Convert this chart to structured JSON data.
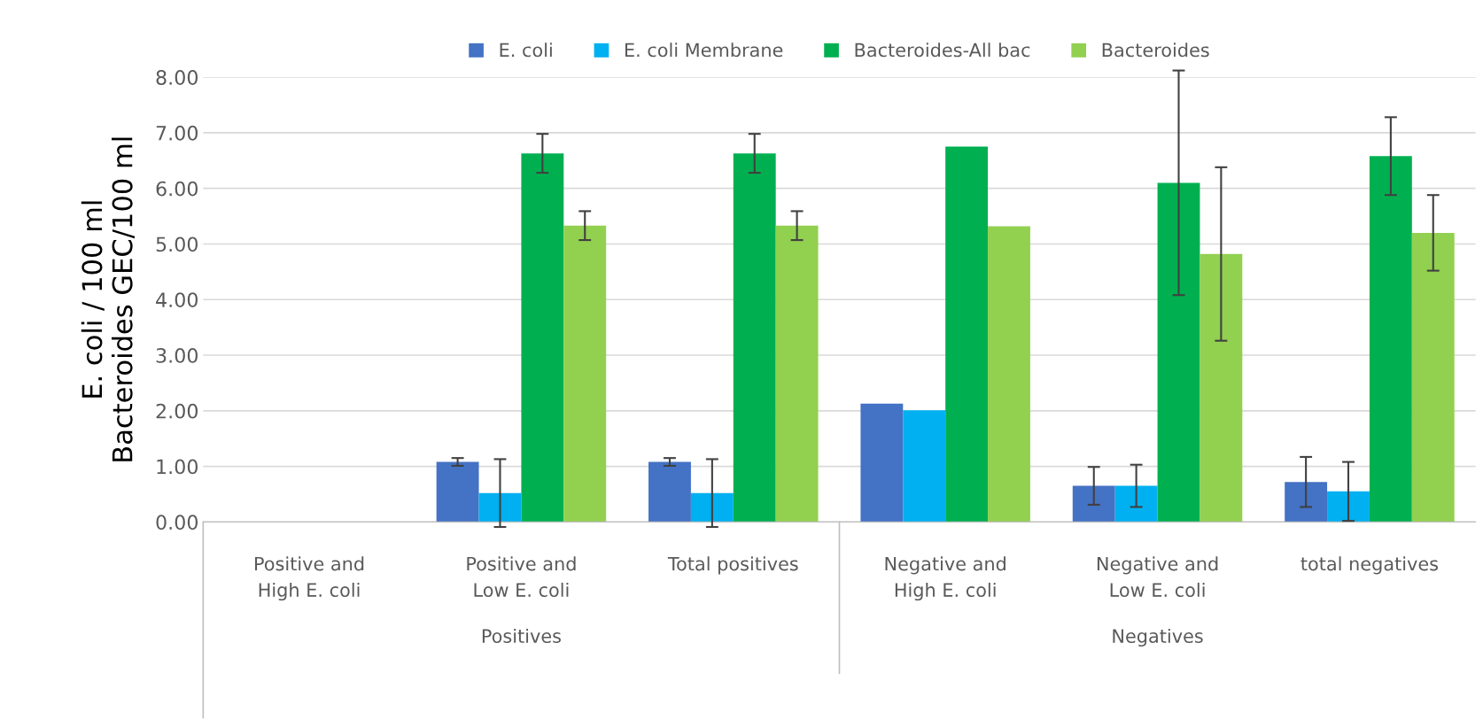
{
  "chart_data": {
    "type": "bar",
    "categories": [
      "Positive and\nHigh E. coli",
      "Positive and\nLow E. coli",
      "Total positives",
      "Negative and\nHigh E. coli",
      "Negative and\nLow E. coli",
      "total negatives"
    ],
    "series": [
      {
        "name": "E. coli",
        "color": "#4472c4",
        "values": [
          null,
          1.08,
          1.08,
          2.13,
          0.65,
          0.72
        ],
        "errors": [
          null,
          0.07,
          0.07,
          null,
          0.34,
          0.45
        ]
      },
      {
        "name": "E. coli Membrane",
        "color": "#00b0f0",
        "values": [
          null,
          0.52,
          0.52,
          2.01,
          0.65,
          0.55
        ],
        "errors": [
          null,
          0.61,
          0.61,
          null,
          0.38,
          0.53
        ]
      },
      {
        "name": "Bacteroides-All bac",
        "color": "#00b050",
        "values": [
          null,
          6.63,
          6.63,
          6.75,
          6.1,
          6.58
        ],
        "errors": [
          null,
          0.35,
          0.35,
          null,
          2.02,
          0.7
        ]
      },
      {
        "name": "Bacteroides",
        "color": "#92d050",
        "values": [
          null,
          5.33,
          5.33,
          5.32,
          4.82,
          5.2
        ],
        "errors": [
          null,
          0.26,
          0.26,
          null,
          1.56,
          0.68
        ]
      }
    ],
    "ylabel": "E. coli / 100 ml\nBacteroides GEC/100 ml",
    "annotations": [
      "Positives",
      "Negatives"
    ],
    "ylim": [
      0,
      8
    ],
    "yticks": [
      {
        "value": 0,
        "label": "0.00"
      },
      {
        "value": 1,
        "label": "1.00"
      },
      {
        "value": 2,
        "label": "2.00"
      },
      {
        "value": 3,
        "label": "3.00"
      },
      {
        "value": 4,
        "label": "4.00"
      },
      {
        "value": 5,
        "label": "5.00"
      },
      {
        "value": 6,
        "label": "6.00"
      },
      {
        "value": 7,
        "label": "7.00"
      },
      {
        "value": 8,
        "label": "8.00"
      }
    ],
    "grid": "y",
    "legend": "top"
  }
}
